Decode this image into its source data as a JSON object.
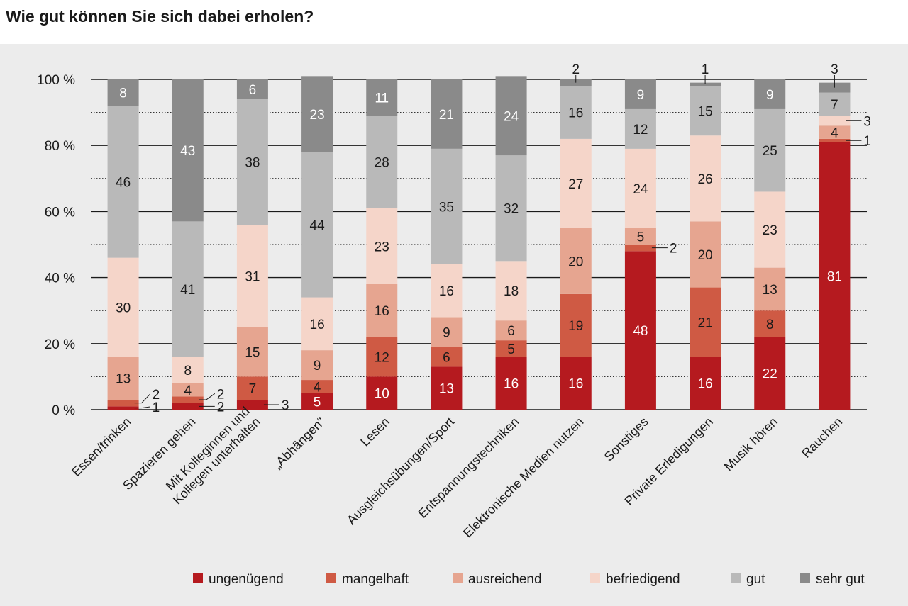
{
  "title": "Wie gut können Sie sich dabei erholen?",
  "chart_data": {
    "type": "bar",
    "stacked": true,
    "title": "Wie gut können Sie sich dabei erholen?",
    "xlabel": "",
    "ylabel": "",
    "ylim": [
      0,
      100
    ],
    "y_ticks": [
      "0 %",
      "20 %",
      "40 %",
      "60 %",
      "80 %",
      "100 %"
    ],
    "y_tick_values": [
      0,
      20,
      40,
      60,
      80,
      100
    ],
    "grid": true,
    "legend_position": "bottom",
    "categories": [
      [
        "Essen/trinken"
      ],
      [
        "Spazieren gehen"
      ],
      [
        "Mit Kolleginnen und",
        "Kollegen unterhalten"
      ],
      [
        "„Abhängen“"
      ],
      [
        "Lesen"
      ],
      [
        "Ausgleichsübungen/Sport"
      ],
      [
        "Entspannungstechniken"
      ],
      [
        "Elektronische Medien nutzen"
      ],
      [
        "Sonstiges"
      ],
      [
        "Private Erledigungen"
      ],
      [
        "Musik hören"
      ],
      [
        "Rauchen"
      ]
    ],
    "series": [
      {
        "name": "ungenügend",
        "color": "#b51a1f",
        "label_color": "#ffffff",
        "values": [
          1,
          2,
          3,
          5,
          10,
          13,
          16,
          16,
          48,
          16,
          22,
          81
        ]
      },
      {
        "name": "mangelhaft",
        "color": "#cf5a44",
        "label_color": "#1a1a1a",
        "values": [
          2,
          2,
          7,
          4,
          12,
          6,
          5,
          19,
          2,
          21,
          8,
          1
        ]
      },
      {
        "name": "ausreichend",
        "color": "#e6a590",
        "label_color": "#1a1a1a",
        "values": [
          13,
          4,
          15,
          9,
          16,
          9,
          6,
          20,
          5,
          20,
          13,
          4
        ]
      },
      {
        "name": "befriedigend",
        "color": "#f5d5c9",
        "label_color": "#1a1a1a",
        "values": [
          30,
          8,
          31,
          16,
          23,
          16,
          18,
          27,
          24,
          26,
          23,
          3
        ]
      },
      {
        "name": "gut",
        "color": "#b9b9b9",
        "label_color": "#1a1a1a",
        "values": [
          46,
          41,
          38,
          44,
          28,
          35,
          32,
          16,
          12,
          15,
          25,
          7
        ]
      },
      {
        "name": "sehr gut",
        "color": "#8a8a8a",
        "label_color": "#ffffff",
        "values": [
          8,
          43,
          6,
          23,
          11,
          21,
          24,
          2,
          9,
          1,
          9,
          3
        ]
      }
    ]
  }
}
